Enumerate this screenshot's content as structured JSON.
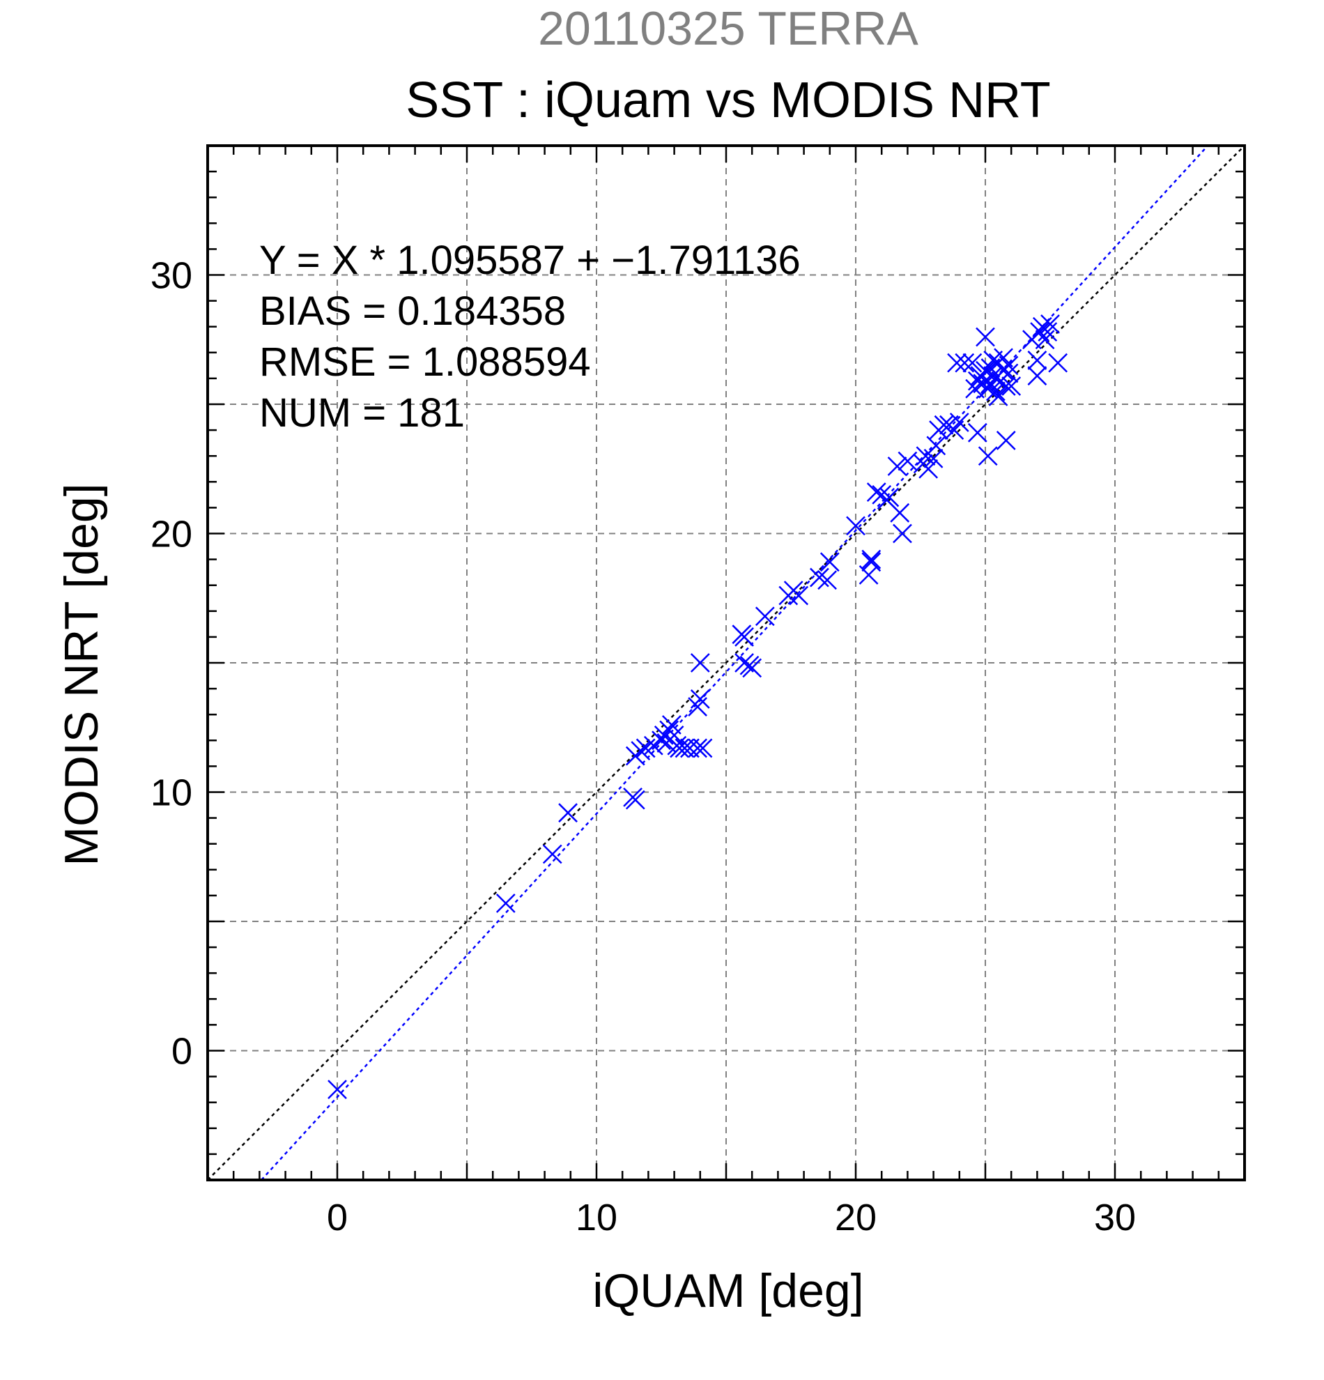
{
  "chart_data": {
    "type": "scatter",
    "title": "20110325 TERRA",
    "subtitle": "SST : iQuam vs MODIS NRT",
    "xlabel": "iQUAM [deg]",
    "ylabel": "MODIS NRT [deg]",
    "xlim": [
      -5,
      35
    ],
    "ylim": [
      -5,
      35
    ],
    "xticks": [
      "0",
      "10",
      "20",
      "30"
    ],
    "yticks": [
      "0",
      "10",
      "20",
      "30"
    ],
    "grid": true,
    "stats": {
      "equation": "Y = X * 1.095587 + −1.791136",
      "bias": "BIAS = 0.184358",
      "rmse": "RMSE = 1.088594",
      "num": "NUM = 181"
    },
    "fit_line": {
      "slope": 1.095587,
      "intercept": -1.791136
    },
    "colors": {
      "points": "#0000ff",
      "fit_line": "#0000ff",
      "one_to_one": "#000000",
      "grid": "#808080"
    },
    "points": [
      [
        0.0,
        -1.5
      ],
      [
        6.5,
        5.7
      ],
      [
        8.3,
        7.6
      ],
      [
        8.9,
        9.2
      ],
      [
        11.4,
        9.8
      ],
      [
        11.5,
        9.7
      ],
      [
        11.5,
        11.4
      ],
      [
        11.7,
        11.6
      ],
      [
        11.9,
        11.7
      ],
      [
        12.2,
        11.8
      ],
      [
        12.5,
        12.0
      ],
      [
        12.6,
        12.2
      ],
      [
        12.7,
        11.9
      ],
      [
        12.8,
        12.4
      ],
      [
        12.9,
        12.6
      ],
      [
        13.0,
        12.2
      ],
      [
        13.1,
        11.8
      ],
      [
        13.2,
        11.7
      ],
      [
        13.4,
        11.7
      ],
      [
        13.6,
        11.7
      ],
      [
        13.9,
        11.7
      ],
      [
        14.1,
        11.7
      ],
      [
        13.9,
        13.3
      ],
      [
        14.0,
        13.6
      ],
      [
        14.0,
        15.0
      ],
      [
        15.6,
        16.1
      ],
      [
        15.7,
        16.0
      ],
      [
        15.7,
        15.0
      ],
      [
        15.9,
        14.9
      ],
      [
        16.0,
        14.8
      ],
      [
        16.5,
        16.8
      ],
      [
        17.4,
        17.6
      ],
      [
        17.6,
        17.8
      ],
      [
        17.8,
        17.6
      ],
      [
        18.6,
        18.3
      ],
      [
        18.9,
        18.2
      ],
      [
        19.0,
        18.9
      ],
      [
        20.0,
        20.3
      ],
      [
        20.5,
        18.4
      ],
      [
        20.6,
        19.0
      ],
      [
        20.6,
        18.9
      ],
      [
        20.8,
        21.6
      ],
      [
        21.0,
        21.5
      ],
      [
        21.2,
        21.3
      ],
      [
        21.3,
        21.4
      ],
      [
        21.6,
        22.6
      ],
      [
        21.7,
        20.8
      ],
      [
        21.8,
        20.0
      ],
      [
        22.0,
        22.8
      ],
      [
        22.6,
        22.7
      ],
      [
        22.7,
        23.0
      ],
      [
        22.8,
        22.5
      ],
      [
        23.0,
        22.9
      ],
      [
        23.1,
        23.4
      ],
      [
        23.2,
        24.0
      ],
      [
        23.4,
        24.2
      ],
      [
        23.6,
        24.2
      ],
      [
        23.8,
        24.0
      ],
      [
        24.0,
        24.3
      ],
      [
        23.9,
        26.6
      ],
      [
        24.2,
        26.6
      ],
      [
        24.5,
        26.6
      ],
      [
        24.7,
        23.9
      ],
      [
        24.6,
        25.6
      ],
      [
        24.7,
        25.9
      ],
      [
        24.8,
        26.1
      ],
      [
        24.9,
        25.8
      ],
      [
        25.0,
        26.3
      ],
      [
        25.0,
        27.6
      ],
      [
        25.1,
        23.0
      ],
      [
        25.1,
        25.6
      ],
      [
        25.2,
        26.4
      ],
      [
        25.2,
        25.8
      ],
      [
        25.3,
        26.1
      ],
      [
        25.3,
        26.7
      ],
      [
        25.4,
        25.5
      ],
      [
        25.4,
        26.0
      ],
      [
        25.5,
        26.6
      ],
      [
        25.5,
        25.3
      ],
      [
        25.6,
        25.9
      ],
      [
        25.7,
        26.3
      ],
      [
        25.7,
        26.8
      ],
      [
        25.8,
        25.7
      ],
      [
        25.9,
        26.2
      ],
      [
        25.8,
        23.6
      ],
      [
        26.0,
        25.7
      ],
      [
        25.9,
        26.5
      ],
      [
        26.8,
        27.5
      ],
      [
        27.0,
        26.1
      ],
      [
        27.0,
        26.7
      ],
      [
        27.1,
        27.8
      ],
      [
        27.2,
        28.0
      ],
      [
        27.3,
        27.5
      ],
      [
        27.4,
        27.8
      ],
      [
        27.5,
        28.1
      ],
      [
        27.8,
        26.6
      ]
    ]
  }
}
